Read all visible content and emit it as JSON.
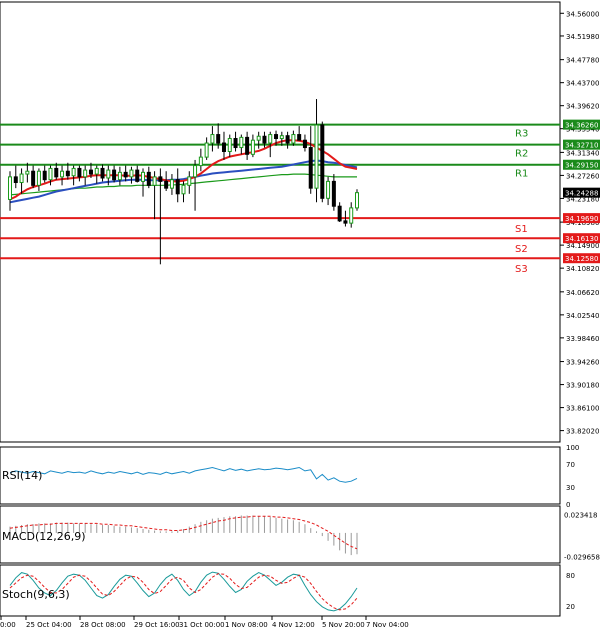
{
  "chart_data": {
    "type": "candlestick",
    "price_axis": {
      "range": [
        33.8,
        34.58
      ],
      "ticks": [
        "34.56000",
        "34.51980",
        "34.47780",
        "34.43700",
        "34.39620",
        "34.35540",
        "34.31340",
        "34.27260",
        "34.23180",
        "34.18980",
        "34.14900",
        "34.10820",
        "34.06620",
        "34.02540",
        "33.98460",
        "33.94260",
        "33.90180",
        "33.86100",
        "33.82020"
      ]
    },
    "price_ticks_pos": [
      34.56,
      34.5198,
      34.4778,
      34.437,
      34.3962,
      34.3554,
      34.3134,
      34.2726,
      34.2318,
      34.1898,
      34.149,
      34.1082,
      34.0662,
      34.0254,
      33.9846,
      33.9426,
      33.9018,
      33.861,
      33.8202
    ],
    "time_axis": [
      "0:00",
      "25 Oct 04:00",
      "28 Oct 08:00",
      "29 Oct 16:00",
      "31 Oct 00:00",
      "1 Nov 08:00",
      "4 Nov 12:00",
      "5 Nov 20:00",
      "7 Nov 04:00"
    ],
    "current_price": "34.24288",
    "levels": [
      {
        "name": "R3",
        "value": 34.3626,
        "label": "34.36260",
        "color": "#1a8a1a"
      },
      {
        "name": "R2",
        "value": 34.3271,
        "label": "34.32710",
        "color": "#1a8a1a"
      },
      {
        "name": "R1",
        "value": 34.2915,
        "label": "34.29150",
        "color": "#1a8a1a"
      },
      {
        "name": "S1",
        "value": 34.1969,
        "label": "34.19690",
        "color": "#e31a1a"
      },
      {
        "name": "S2",
        "value": 34.1613,
        "label": "34.16130",
        "color": "#e31a1a"
      },
      {
        "name": "S3",
        "value": 34.1258,
        "label": "34.12580",
        "color": "#e31a1a"
      }
    ],
    "candles": [
      [
        34.23,
        34.28,
        34.21,
        34.27
      ],
      [
        34.27,
        34.29,
        34.25,
        34.26
      ],
      [
        34.26,
        34.285,
        34.24,
        34.275
      ],
      [
        34.275,
        34.295,
        34.26,
        34.28
      ],
      [
        34.28,
        34.29,
        34.25,
        34.255
      ],
      [
        34.255,
        34.285,
        34.245,
        34.28
      ],
      [
        34.28,
        34.29,
        34.26,
        34.265
      ],
      [
        34.265,
        34.29,
        34.255,
        34.285
      ],
      [
        34.285,
        34.295,
        34.265,
        34.27
      ],
      [
        34.27,
        34.29,
        34.255,
        34.28
      ],
      [
        34.28,
        34.295,
        34.265,
        34.272
      ],
      [
        34.272,
        34.29,
        34.255,
        34.285
      ],
      [
        34.285,
        34.29,
        34.262,
        34.27
      ],
      [
        34.27,
        34.29,
        34.255,
        34.282
      ],
      [
        34.282,
        34.295,
        34.268,
        34.275
      ],
      [
        34.275,
        34.29,
        34.258,
        34.285
      ],
      [
        34.285,
        34.292,
        34.262,
        34.268
      ],
      [
        34.268,
        34.29,
        34.255,
        34.282
      ],
      [
        34.282,
        34.29,
        34.26,
        34.265
      ],
      [
        34.265,
        34.288,
        34.255,
        34.278
      ],
      [
        34.278,
        34.29,
        34.262,
        34.27
      ],
      [
        34.27,
        34.288,
        34.258,
        34.282
      ],
      [
        34.282,
        34.29,
        34.26,
        34.262
      ],
      [
        34.262,
        34.285,
        34.235,
        34.278
      ],
      [
        34.278,
        34.288,
        34.25,
        34.255
      ],
      [
        34.255,
        34.28,
        34.195,
        34.27
      ],
      [
        34.27,
        34.285,
        34.115,
        34.262
      ],
      [
        34.262,
        34.28,
        34.245,
        34.25
      ],
      [
        34.25,
        34.275,
        34.238,
        34.265
      ],
      [
        34.265,
        34.285,
        34.225,
        34.24
      ],
      [
        34.24,
        34.262,
        34.225,
        34.255
      ],
      [
        34.255,
        34.28,
        34.24,
        34.27
      ],
      [
        34.27,
        34.3,
        34.21,
        34.29
      ],
      [
        34.29,
        34.32,
        34.28,
        34.305
      ],
      [
        34.305,
        34.34,
        34.3,
        34.33
      ],
      [
        34.33,
        34.36,
        34.315,
        34.345
      ],
      [
        34.345,
        34.365,
        34.32,
        34.33
      ],
      [
        34.33,
        34.35,
        34.3,
        34.315
      ],
      [
        34.315,
        34.345,
        34.305,
        34.338
      ],
      [
        34.338,
        34.35,
        34.315,
        34.322
      ],
      [
        34.322,
        34.345,
        34.31,
        34.34
      ],
      [
        34.34,
        34.35,
        34.3,
        34.31
      ],
      [
        34.31,
        34.345,
        34.305,
        34.335
      ],
      [
        34.335,
        34.35,
        34.32,
        34.342
      ],
      [
        34.342,
        34.35,
        34.322,
        34.33
      ],
      [
        34.33,
        34.35,
        34.305,
        34.345
      ],
      [
        34.345,
        34.352,
        34.325,
        34.338
      ],
      [
        34.338,
        34.35,
        34.325,
        34.343
      ],
      [
        34.343,
        34.35,
        34.32,
        34.33
      ],
      [
        34.33,
        34.352,
        34.325,
        34.345
      ],
      [
        34.345,
        34.36,
        34.335,
        34.335
      ],
      [
        34.335,
        34.345,
        34.315,
        34.322
      ],
      [
        34.322,
        34.36,
        34.24,
        34.25
      ],
      [
        34.25,
        34.408,
        34.225,
        34.362
      ],
      [
        34.362,
        34.368,
        34.225,
        34.232
      ],
      [
        34.232,
        34.27,
        34.22,
        34.262
      ],
      [
        34.262,
        34.275,
        34.21,
        34.218
      ],
      [
        34.218,
        34.225,
        34.19,
        34.192
      ],
      [
        34.192,
        34.21,
        34.182,
        34.188
      ],
      [
        34.188,
        34.225,
        34.18,
        34.215
      ],
      [
        34.215,
        34.248,
        34.21,
        34.242
      ]
    ],
    "ma_red": [
      34.23,
      34.235,
      34.242,
      34.248,
      34.252,
      34.255,
      34.258,
      34.262,
      34.265,
      34.266,
      34.267,
      34.268,
      34.269,
      34.27,
      34.272,
      34.273,
      34.273,
      34.273,
      34.273,
      34.273,
      34.272,
      34.272,
      34.273,
      34.272,
      34.27,
      34.268,
      34.266,
      34.264,
      34.262,
      34.262,
      34.263,
      34.266,
      34.27,
      34.276,
      34.284,
      34.292,
      34.298,
      34.302,
      34.306,
      34.308,
      34.31,
      34.312,
      34.314,
      34.316,
      34.32,
      34.325,
      34.33,
      34.333,
      34.335,
      34.335,
      34.334,
      34.332,
      34.328,
      34.322,
      34.316,
      34.31,
      34.302,
      34.294,
      34.288,
      34.286,
      34.284
    ],
    "ma_blue": [
      34.225,
      34.227,
      34.229,
      34.231,
      34.233,
      34.235,
      34.238,
      34.241,
      34.244,
      34.246,
      34.248,
      34.25,
      34.252,
      34.254,
      34.256,
      34.258,
      34.26,
      34.261,
      34.262,
      34.263,
      34.264,
      34.265,
      34.265,
      34.265,
      34.264,
      34.264,
      34.264,
      34.264,
      34.265,
      34.265,
      34.266,
      34.268,
      34.27,
      34.272,
      34.274,
      34.276,
      34.277,
      34.278,
      34.279,
      34.28,
      34.281,
      34.282,
      34.283,
      34.284,
      34.285,
      34.286,
      34.287,
      34.288,
      34.29,
      34.292,
      34.294,
      34.296,
      34.298,
      34.299,
      34.298,
      34.296,
      34.295,
      34.293,
      34.291,
      34.289,
      34.287
    ],
    "ma_green": [
      34.238,
      34.239,
      34.24,
      34.241,
      34.242,
      34.243,
      34.244,
      34.245,
      34.246,
      34.247,
      34.248,
      34.249,
      34.25,
      34.25,
      34.251,
      34.252,
      34.252,
      34.253,
      34.253,
      34.254,
      34.254,
      34.254,
      34.255,
      34.255,
      34.255,
      34.255,
      34.255,
      34.255,
      34.256,
      34.256,
      34.257,
      34.258,
      34.259,
      34.26,
      34.261,
      34.262,
      34.263,
      34.264,
      34.265,
      34.266,
      34.267,
      34.268,
      34.269,
      34.27,
      34.271,
      34.272,
      34.273,
      34.274,
      34.274,
      34.275,
      34.275,
      34.275,
      34.274,
      34.273,
      34.272,
      34.271,
      34.27,
      34.27,
      34.27,
      34.27,
      34.27
    ],
    "rsi": {
      "label": "RSI(14)",
      "ticks": [
        "100",
        "70",
        "30",
        "0"
      ],
      "tick_values": [
        100,
        70,
        30,
        0
      ],
      "values": [
        55,
        58,
        56,
        54,
        57,
        55,
        53,
        58,
        56,
        54,
        57,
        55,
        56,
        54,
        58,
        55,
        53,
        56,
        54,
        57,
        55,
        53,
        56,
        52,
        55,
        54,
        52,
        56,
        53,
        55,
        57,
        54,
        58,
        60,
        62,
        64,
        61,
        58,
        62,
        59,
        61,
        58,
        60,
        62,
        60,
        61,
        63,
        62,
        60,
        62,
        64,
        58,
        60,
        44,
        52,
        42,
        46,
        40,
        38,
        40,
        45
      ]
    },
    "macd": {
      "label": "MACD(12,26,9)",
      "ticks": [
        "0.023418",
        "-0.029658"
      ],
      "tick_values": [
        0.023418,
        -0.029658
      ],
      "hist": [
        0.008,
        0.009,
        0.01,
        0.011,
        0.011,
        0.012,
        0.012,
        0.012,
        0.013,
        0.013,
        0.013,
        0.012,
        0.012,
        0.012,
        0.011,
        0.011,
        0.01,
        0.01,
        0.009,
        0.008,
        0.008,
        0.007,
        0.006,
        0.005,
        0.004,
        0.003,
        0.002,
        0.002,
        0.002,
        0.003,
        0.005,
        0.008,
        0.011,
        0.014,
        0.016,
        0.018,
        0.019,
        0.02,
        0.021,
        0.021,
        0.022,
        0.022,
        0.022,
        0.021,
        0.021,
        0.02,
        0.019,
        0.018,
        0.017,
        0.016,
        0.014,
        0.011,
        0.006,
        0.002,
        -0.004,
        -0.01,
        -0.016,
        -0.022,
        -0.026,
        -0.028,
        -0.027
      ],
      "signal": [
        0.006,
        0.007,
        0.008,
        0.009,
        0.01,
        0.01,
        0.011,
        0.011,
        0.012,
        0.012,
        0.012,
        0.012,
        0.012,
        0.012,
        0.012,
        0.012,
        0.011,
        0.011,
        0.01,
        0.01,
        0.009,
        0.009,
        0.008,
        0.007,
        0.006,
        0.005,
        0.004,
        0.004,
        0.003,
        0.003,
        0.004,
        0.005,
        0.007,
        0.009,
        0.011,
        0.013,
        0.015,
        0.016,
        0.018,
        0.019,
        0.02,
        0.02,
        0.021,
        0.021,
        0.021,
        0.021,
        0.02,
        0.02,
        0.019,
        0.018,
        0.017,
        0.015,
        0.013,
        0.01,
        0.006,
        0.002,
        -0.003,
        -0.008,
        -0.013,
        -0.017,
        -0.02
      ]
    },
    "stoch": {
      "label": "Stoch(9,6,3)",
      "ticks": [
        "80",
        "20"
      ],
      "tick_values": [
        80,
        20
      ],
      "k": [
        60,
        75,
        85,
        82,
        70,
        55,
        45,
        40,
        50,
        65,
        78,
        82,
        80,
        70,
        55,
        40,
        35,
        42,
        58,
        72,
        80,
        78,
        65,
        50,
        38,
        45,
        62,
        75,
        82,
        70,
        52,
        40,
        48,
        66,
        80,
        86,
        84,
        72,
        58,
        46,
        52,
        68,
        78,
        85,
        80,
        70,
        60,
        66,
        76,
        82,
        80,
        60,
        42,
        28,
        18,
        12,
        10,
        14,
        24,
        38,
        55
      ],
      "d": [
        55,
        65,
        75,
        80,
        78,
        68,
        56,
        46,
        45,
        52,
        64,
        76,
        80,
        78,
        68,
        55,
        43,
        40,
        48,
        60,
        72,
        78,
        76,
        66,
        52,
        44,
        48,
        60,
        72,
        76,
        70,
        55,
        46,
        52,
        64,
        76,
        83,
        82,
        74,
        62,
        54,
        56,
        66,
        76,
        80,
        78,
        70,
        64,
        66,
        74,
        80,
        76,
        64,
        48,
        34,
        24,
        16,
        12,
        14,
        22,
        35
      ]
    }
  }
}
